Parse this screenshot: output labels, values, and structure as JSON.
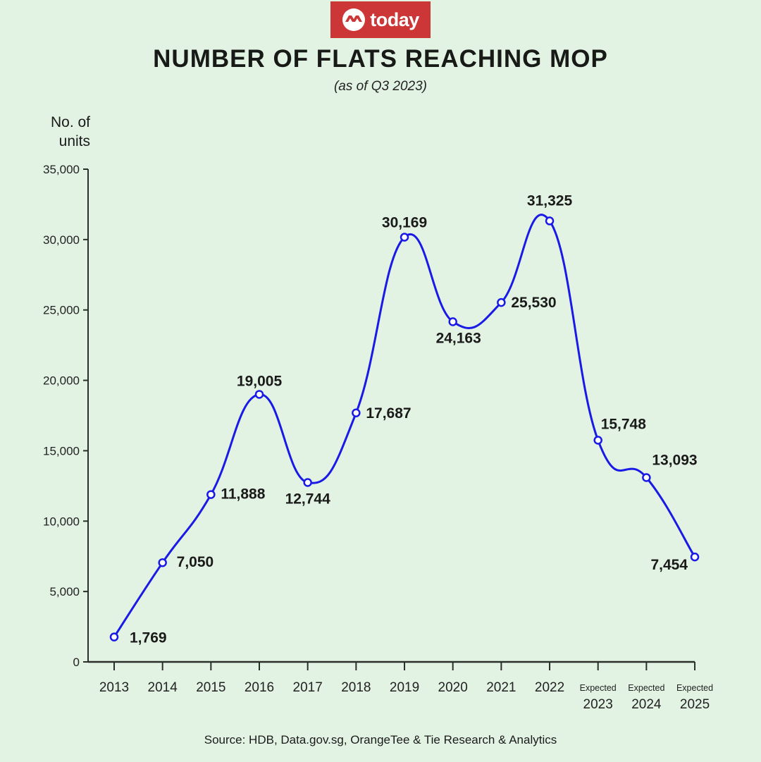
{
  "logo": {
    "text": "today",
    "brand_color": "#cc3636"
  },
  "chart_data": {
    "type": "line",
    "title": "NUMBER OF FLATS REACHING MOP",
    "subtitle": "(as of Q3 2023)",
    "ylabel": "No. of units",
    "xlabel": "",
    "categories": [
      {
        "top": "",
        "year": "2013"
      },
      {
        "top": "",
        "year": "2014"
      },
      {
        "top": "",
        "year": "2015"
      },
      {
        "top": "",
        "year": "2016"
      },
      {
        "top": "",
        "year": "2017"
      },
      {
        "top": "",
        "year": "2018"
      },
      {
        "top": "",
        "year": "2019"
      },
      {
        "top": "",
        "year": "2020"
      },
      {
        "top": "",
        "year": "2021"
      },
      {
        "top": "",
        "year": "2022"
      },
      {
        "top": "Expected",
        "year": "2023"
      },
      {
        "top": "Expected",
        "year": "2024"
      },
      {
        "top": "Expected",
        "year": "2025"
      }
    ],
    "values": [
      1769,
      7050,
      11888,
      19005,
      12744,
      17687,
      30169,
      24163,
      25530,
      31325,
      15748,
      13093,
      7454
    ],
    "value_labels": [
      "1,769",
      "7,050",
      "11,888",
      "19,005",
      "12,744",
      "17,687",
      "30,169",
      "24,163",
      "25,530",
      "31,325",
      "15,748",
      "13,093",
      "7,454"
    ],
    "ylim": [
      0,
      35000
    ],
    "yticks": [
      0,
      5000,
      10000,
      15000,
      20000,
      25000,
      30000,
      35000
    ],
    "ytick_labels": [
      "0",
      "5,000",
      "10,000",
      "15,000",
      "20,000",
      "25,000",
      "30,000",
      "35,000"
    ],
    "grid": false,
    "line_color": "#1a1ae6",
    "source": "Source: HDB, Data.gov.sg, OrangeTee & Tie Research & Analytics"
  }
}
